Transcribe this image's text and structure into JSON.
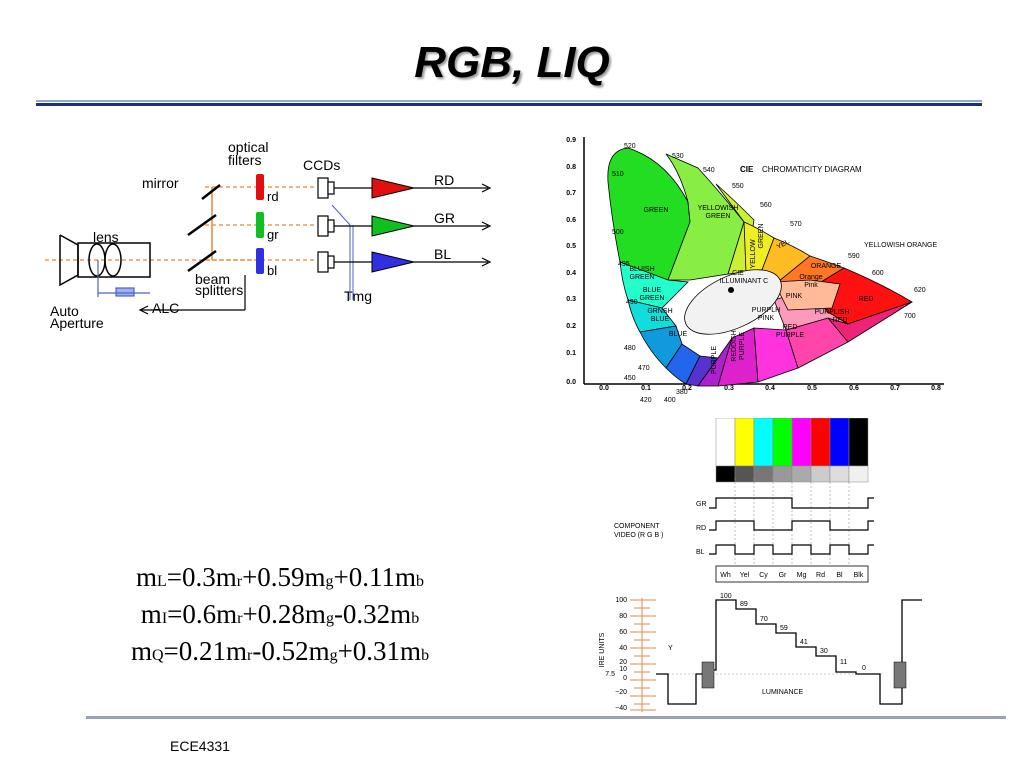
{
  "slide": {
    "title": "RGB, LIQ",
    "footer": "ECE4331"
  },
  "camera": {
    "labels": {
      "optical_filters_1": "optical",
      "optical_filters_2": "filters",
      "ccds": "CCDs",
      "mirror": "mirror",
      "lens": "lens",
      "beam_splitters_1": "beam",
      "beam_splitters_2": "splitters",
      "auto_1": "Auto",
      "auto_2": "Aperture",
      "alc": "ALC",
      "tmg": "Tmg"
    },
    "channels": [
      {
        "filter": "rd",
        "output": "RD",
        "color": "#e01010"
      },
      {
        "filter": "gr",
        "output": "GR",
        "color": "#10c020"
      },
      {
        "filter": "bl",
        "output": "BL",
        "color": "#3030e0"
      }
    ]
  },
  "cie": {
    "title_bold": "CIE",
    "title_rest": "CHROMATICITY DIAGRAM",
    "y_ticks": [
      "0.9",
      "0.8",
      "0.7",
      "0.6",
      "0.5",
      "0.4",
      "0.3",
      "0.2",
      "0.1",
      "0.0"
    ],
    "x_ticks": [
      "0.0",
      "0.1",
      "0.2",
      "0.3",
      "0.4",
      "0.5",
      "0.6",
      "0.7",
      "0.8"
    ],
    "wavelengths": [
      "520",
      "530",
      "540",
      "550",
      "560",
      "570",
      "580",
      "590",
      "600",
      "620",
      "700",
      "510",
      "500",
      "495",
      "490",
      "480",
      "470",
      "450",
      "420",
      "400",
      "380"
    ],
    "regions": [
      "GREEN",
      "YELLOWISH",
      "GREEN",
      "YELLOW",
      "GREEN",
      "YEL",
      "YELLOWISH ORANGE",
      "ORANGE",
      "Orange",
      "Pink",
      "RED",
      "PINK",
      "PURPLISH",
      "RED",
      "BLUISH",
      "GREEN",
      "BLUE",
      "GREEN",
      "GRNSH",
      "BLUE",
      "BLUE",
      "PURPLE",
      "REDDISH",
      "PURPLE",
      "PURPLH",
      "PINK",
      "RED",
      "PURPLE",
      "CIE",
      "ILLUMINANT C"
    ]
  },
  "color_bars": {
    "colors": [
      "#ffffff",
      "#ffff00",
      "#00ffff",
      "#00ff00",
      "#ff00ff",
      "#ff0000",
      "#0000ff",
      "#000000"
    ],
    "grays": [
      "#000000",
      "#555555",
      "#777777",
      "#999999",
      "#aaaaaa",
      "#cccccc",
      "#dddddd",
      "#f0f0f0"
    ],
    "labels": [
      "Wh",
      "Yel",
      "Cy",
      "Gr",
      "Mg",
      "Rd",
      "Bl",
      "Blk"
    ],
    "signals": [
      "GR",
      "RD",
      "BL"
    ],
    "component_1": "COMPONENT",
    "component_2": "VIDEO (R G B )"
  },
  "luminance": {
    "axis_label": "IRE UNITS",
    "ticks": [
      "100",
      "80",
      "60",
      "40",
      "20",
      "10",
      "0",
      "7.5",
      "−20",
      "−40"
    ],
    "steps": [
      "100",
      "89",
      "70",
      "59",
      "41",
      "30",
      "11",
      "0"
    ],
    "y_label": "Y",
    "caption": "LUMINANCE"
  },
  "equations": [
    {
      "l": "m",
      "ls": "L",
      "a": "=0.3m",
      "as": "r",
      "b": "+0.59m",
      "bs": "g",
      "c": "+0.11m",
      "cs": "b"
    },
    {
      "l": "m",
      "ls": "I",
      "a": "=0.6m",
      "as": "r",
      "b": "+0.28m",
      "bs": "g",
      "c": "-0.32m",
      "cs": "b"
    },
    {
      "l": "m",
      "ls": "Q",
      "a": "=0.21m",
      "as": "r",
      "b": "-0.52m",
      "bs": "g",
      "c": "+0.31m",
      "cs": "b"
    }
  ]
}
